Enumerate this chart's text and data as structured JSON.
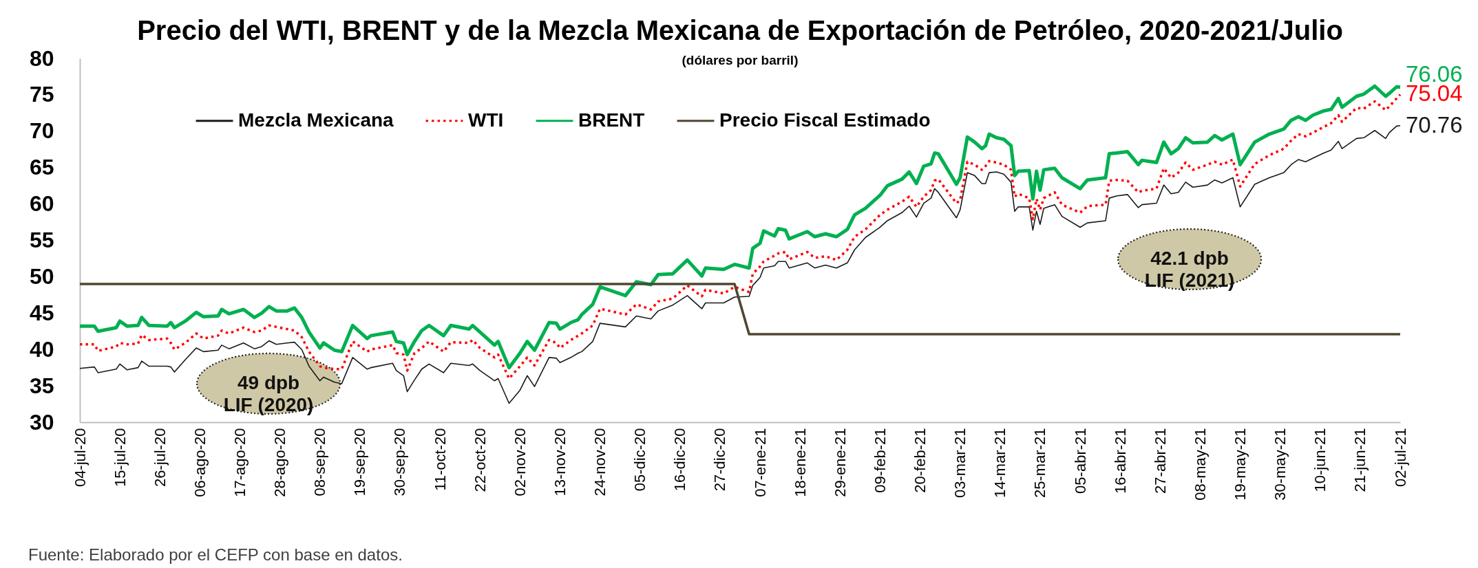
{
  "chart_data": {
    "type": "line",
    "title": "Precio del WTI, BRENT y de la Mezcla Mexicana de Exportación de Petróleo, 2020-2021/Julio",
    "subtitle": "(dólares por barril)",
    "legend": "top left",
    "xlim": [
      "2020-07-04",
      "2021-07-02"
    ],
    "xticks": [
      {
        "value": "2020-07-04",
        "label": "04-jul-20"
      },
      {
        "value": "2020-07-15",
        "label": "15-jul-20"
      },
      {
        "value": "2020-07-26",
        "label": "26-jul-20"
      },
      {
        "value": "2020-08-06",
        "label": "06-ago-20"
      },
      {
        "value": "2020-08-17",
        "label": "17-ago-20"
      },
      {
        "value": "2020-08-28",
        "label": "28-ago-20"
      },
      {
        "value": "2020-09-08",
        "label": "08-sep-20"
      },
      {
        "value": "2020-09-19",
        "label": "19-sep-20"
      },
      {
        "value": "2020-09-30",
        "label": "30-sep-20"
      },
      {
        "value": "2020-10-11",
        "label": "11-oct-20"
      },
      {
        "value": "2020-10-22",
        "label": "22-oct-20"
      },
      {
        "value": "2020-11-02",
        "label": "02-nov-20"
      },
      {
        "value": "2020-11-13",
        "label": "13-nov-20"
      },
      {
        "value": "2020-11-24",
        "label": "24-nov-20"
      },
      {
        "value": "2020-12-05",
        "label": "05-dic-20"
      },
      {
        "value": "2020-12-16",
        "label": "16-dic-20"
      },
      {
        "value": "2020-12-27",
        "label": "27-dic-20"
      },
      {
        "value": "2021-01-07",
        "label": "07-ene-21"
      },
      {
        "value": "2021-01-18",
        "label": "18-ene-21"
      },
      {
        "value": "2021-01-29",
        "label": "29-ene-21"
      },
      {
        "value": "2021-02-09",
        "label": "09-feb-21"
      },
      {
        "value": "2021-02-20",
        "label": "20-feb-21"
      },
      {
        "value": "2021-03-03",
        "label": "03-mar-21"
      },
      {
        "value": "2021-03-14",
        "label": "14-mar-21"
      },
      {
        "value": "2021-03-25",
        "label": "25-mar-21"
      },
      {
        "value": "2021-04-05",
        "label": "05-abr-21"
      },
      {
        "value": "2021-04-16",
        "label": "16-abr-21"
      },
      {
        "value": "2021-04-27",
        "label": "27-abr-21"
      },
      {
        "value": "2021-05-08",
        "label": "08-may-21"
      },
      {
        "value": "2021-05-19",
        "label": "19-may-21"
      },
      {
        "value": "2021-05-30",
        "label": "30-may-21"
      },
      {
        "value": "2021-06-10",
        "label": "10-jun-21"
      },
      {
        "value": "2021-06-21",
        "label": "21-jun-21"
      },
      {
        "value": "2021-07-02",
        "label": "02-jul-21"
      }
    ],
    "ylim": [
      30,
      80
    ],
    "yticks": [
      30,
      35,
      40,
      45,
      50,
      55,
      60,
      65,
      70,
      75,
      80
    ],
    "x": [
      "2020-07-04",
      "2020-07-08",
      "2020-07-09",
      "2020-07-14",
      "2020-07-15",
      "2020-07-17",
      "2020-07-20",
      "2020-07-21",
      "2020-07-23",
      "2020-07-28",
      "2020-07-29",
      "2020-07-30",
      "2020-08-02",
      "2020-08-05",
      "2020-08-07",
      "2020-08-11",
      "2020-08-12",
      "2020-08-14",
      "2020-08-18",
      "2020-08-21",
      "2020-08-23",
      "2020-08-25",
      "2020-08-27",
      "2020-08-30",
      "2020-09-01",
      "2020-09-03",
      "2020-09-05",
      "2020-09-08",
      "2020-09-09",
      "2020-09-12",
      "2020-09-14",
      "2020-09-17",
      "2020-09-21",
      "2020-09-22",
      "2020-09-28",
      "2020-09-29",
      "2020-10-01",
      "2020-10-02",
      "2020-10-04",
      "2020-10-06",
      "2020-10-08",
      "2020-10-12",
      "2020-10-14",
      "2020-10-19",
      "2020-10-20",
      "2020-10-22",
      "2020-10-26",
      "2020-10-27",
      "2020-10-30",
      "2020-11-02",
      "2020-11-04",
      "2020-11-06",
      "2020-11-10",
      "2020-11-12",
      "2020-11-13",
      "2020-11-16",
      "2020-11-18",
      "2020-11-19",
      "2020-11-22",
      "2020-11-24",
      "2020-12-01",
      "2020-12-04",
      "2020-12-08",
      "2020-12-10",
      "2020-12-14",
      "2020-12-18",
      "2020-12-22",
      "2020-12-23",
      "2020-12-28",
      "2020-12-31",
      "2021-01-04",
      "2021-01-05",
      "2021-01-07",
      "2021-01-08",
      "2021-01-11",
      "2021-01-12",
      "2021-01-14",
      "2021-01-15",
      "2021-01-20",
      "2021-01-22",
      "2021-01-25",
      "2021-01-28",
      "2021-01-31",
      "2021-02-02",
      "2021-02-05",
      "2021-02-09",
      "2021-02-11",
      "2021-02-15",
      "2021-02-17",
      "2021-02-19",
      "2021-02-21",
      "2021-02-23",
      "2021-02-24",
      "2021-02-25",
      "2021-03-02",
      "2021-03-03",
      "2021-03-05",
      "2021-03-07",
      "2021-03-09",
      "2021-03-10",
      "2021-03-11",
      "2021-03-13",
      "2021-03-15",
      "2021-03-17",
      "2021-03-18",
      "2021-03-19",
      "2021-03-22",
      "2021-03-23",
      "2021-03-24",
      "2021-03-25",
      "2021-03-26",
      "2021-03-29",
      "2021-03-31",
      "2021-04-05",
      "2021-04-07",
      "2021-04-12",
      "2021-04-13",
      "2021-04-15",
      "2021-04-18",
      "2021-04-21",
      "2021-04-22",
      "2021-04-26",
      "2021-04-28",
      "2021-04-30",
      "2021-05-02",
      "2021-05-04",
      "2021-05-06",
      "2021-05-10",
      "2021-05-12",
      "2021-05-14",
      "2021-05-17",
      "2021-05-19",
      "2021-05-23",
      "2021-05-27",
      "2021-05-31",
      "2021-06-02",
      "2021-06-04",
      "2021-06-06",
      "2021-06-08",
      "2021-06-11",
      "2021-06-13",
      "2021-06-15",
      "2021-06-16",
      "2021-06-20",
      "2021-06-22",
      "2021-06-25",
      "2021-06-28",
      "2021-06-29",
      "2021-07-01",
      "2021-07-02"
    ],
    "series": [
      {
        "name": "Mezcla Mexicana",
        "color": "#1a1a1a",
        "values": [
          37.4,
          37.6,
          36.8,
          37.3,
          38.0,
          37.2,
          37.5,
          38.4,
          37.7,
          37.7,
          37.6,
          36.9,
          38.6,
          40.2,
          39.7,
          39.9,
          40.6,
          40.1,
          40.9,
          40.1,
          40.4,
          41.2,
          40.7,
          40.9,
          41.0,
          40.0,
          37.7,
          35.7,
          36.2,
          35.5,
          35.3,
          38.9,
          37.3,
          37.5,
          38.1,
          37.1,
          36.4,
          34.2,
          35.8,
          37.3,
          38.0,
          36.8,
          38.1,
          37.8,
          38.0,
          37.1,
          35.7,
          36.0,
          32.6,
          34.4,
          36.4,
          34.9,
          38.9,
          38.8,
          38.2,
          38.9,
          39.5,
          39.7,
          41.1,
          43.6,
          43.1,
          44.6,
          44.2,
          45.3,
          46.1,
          47.4,
          45.6,
          46.4,
          46.4,
          47.2,
          47.3,
          48.8,
          49.9,
          51.2,
          51.5,
          52.1,
          52.1,
          51.2,
          51.9,
          51.2,
          51.6,
          51.2,
          51.9,
          53.7,
          55.4,
          56.8,
          57.7,
          58.8,
          59.7,
          58.2,
          60.1,
          60.8,
          62.1,
          61.6,
          58.1,
          59.2,
          64.3,
          63.9,
          62.8,
          62.8,
          64.3,
          64.4,
          64.1,
          63.0,
          59.0,
          59.6,
          59.6,
          56.4,
          59.0,
          57.2,
          59.4,
          59.9,
          58.3,
          56.8,
          57.4,
          57.7,
          60.8,
          61.1,
          61.3,
          59.5,
          59.9,
          60.1,
          62.6,
          61.4,
          61.6,
          63.0,
          62.3,
          62.6,
          63.3,
          62.9,
          63.6,
          59.6,
          62.7,
          63.6,
          64.3,
          65.4,
          66.1,
          65.8,
          66.3,
          67.0,
          67.4,
          68.6,
          67.6,
          69.0,
          69.1,
          70.1,
          69.0,
          69.8,
          70.7,
          70.76
        ],
        "value_labels": [
          null,
          null,
          null,
          null,
          null,
          null,
          null,
          null,
          null,
          null,
          null,
          null,
          null,
          null,
          null,
          null,
          null,
          null,
          null,
          null,
          null,
          null,
          null,
          null,
          null,
          null,
          null,
          null,
          null,
          null,
          null,
          null,
          null,
          null,
          null,
          null,
          null,
          null,
          null,
          null,
          null,
          null,
          null,
          null,
          null,
          null,
          null,
          null,
          null,
          null,
          null,
          null,
          null,
          null,
          null,
          null,
          null,
          null,
          null,
          null,
          null,
          null,
          null,
          null,
          null,
          null,
          null,
          null,
          null,
          null,
          null,
          null,
          null,
          null,
          null,
          null,
          null,
          null,
          null,
          null,
          null,
          null,
          null,
          null,
          null,
          null,
          null,
          null,
          null,
          null,
          null,
          null,
          null,
          null,
          null,
          null,
          null,
          null,
          null,
          null,
          null,
          null,
          null,
          null,
          null,
          null,
          null,
          null,
          null,
          null,
          null,
          null,
          null,
          null,
          null,
          null,
          null,
          null,
          null,
          null,
          null,
          null,
          null,
          null,
          null,
          null,
          null,
          null,
          null,
          null,
          null,
          null,
          null,
          null,
          null,
          null,
          null,
          null,
          null,
          null,
          null,
          null,
          null,
          null,
          null,
          null,
          null,
          null,
          null,
          "70.76"
        ]
      },
      {
        "name": "WTI",
        "color": "#ff0000",
        "line_style": "dotted",
        "values": [
          40.7,
          40.7,
          39.8,
          40.4,
          40.9,
          40.7,
          40.8,
          42.0,
          41.3,
          41.5,
          40.9,
          40.0,
          40.9,
          42.2,
          41.5,
          41.9,
          42.6,
          42.2,
          43.0,
          42.4,
          42.6,
          43.3,
          43.1,
          42.8,
          42.6,
          41.7,
          39.7,
          37.7,
          37.5,
          37.3,
          37.3,
          41.1,
          39.7,
          40.0,
          40.6,
          39.5,
          39.3,
          37.1,
          39.5,
          40.2,
          41.1,
          39.7,
          41.0,
          40.9,
          41.3,
          40.2,
          38.9,
          39.3,
          36.0,
          37.7,
          38.9,
          37.8,
          41.3,
          40.9,
          40.2,
          41.3,
          41.9,
          42.2,
          43.3,
          45.6,
          44.8,
          46.2,
          45.5,
          46.6,
          47.0,
          48.8,
          47.3,
          48.2,
          47.7,
          48.6,
          47.9,
          50.4,
          51.4,
          52.1,
          52.9,
          53.2,
          53.4,
          52.4,
          53.4,
          52.6,
          52.8,
          52.3,
          53.7,
          55.5,
          56.5,
          58.5,
          59.2,
          60.3,
          61.0,
          59.6,
          61.0,
          61.9,
          63.2,
          63.4,
          60.1,
          60.5,
          65.8,
          65.4,
          64.7,
          65.2,
          65.9,
          65.7,
          65.4,
          64.7,
          61.0,
          61.4,
          60.8,
          57.9,
          60.7,
          59.2,
          60.8,
          61.6,
          59.9,
          58.8,
          59.7,
          59.9,
          63.2,
          63.3,
          63.2,
          61.6,
          61.8,
          62.1,
          64.9,
          63.6,
          64.3,
          65.7,
          64.7,
          65.4,
          65.8,
          65.4,
          66.1,
          62.4,
          65.5,
          66.7,
          67.6,
          68.7,
          69.6,
          69.3,
          69.8,
          70.6,
          71.1,
          72.2,
          71.3,
          73.2,
          73.1,
          74.1,
          72.9,
          73.4,
          74.5,
          75.04
        ],
        "value_labels": [
          null,
          null,
          null,
          null,
          null,
          null,
          null,
          null,
          null,
          null,
          null,
          null,
          null,
          null,
          null,
          null,
          null,
          null,
          null,
          null,
          null,
          null,
          null,
          null,
          null,
          null,
          null,
          null,
          null,
          null,
          null,
          null,
          null,
          null,
          null,
          null,
          null,
          null,
          null,
          null,
          null,
          null,
          null,
          null,
          null,
          null,
          null,
          null,
          null,
          null,
          null,
          null,
          null,
          null,
          null,
          null,
          null,
          null,
          null,
          null,
          null,
          null,
          null,
          null,
          null,
          null,
          null,
          null,
          null,
          null,
          null,
          null,
          null,
          null,
          null,
          null,
          null,
          null,
          null,
          null,
          null,
          null,
          null,
          null,
          null,
          null,
          null,
          null,
          null,
          null,
          null,
          null,
          null,
          null,
          null,
          null,
          null,
          null,
          null,
          null,
          null,
          null,
          null,
          null,
          null,
          null,
          null,
          null,
          null,
          null,
          null,
          null,
          null,
          null,
          null,
          null,
          null,
          null,
          null,
          null,
          null,
          null,
          null,
          null,
          null,
          null,
          null,
          null,
          null,
          null,
          null,
          null,
          null,
          null,
          null,
          null,
          null,
          null,
          null,
          null,
          null,
          null,
          null,
          null,
          null,
          null,
          null,
          null,
          null,
          "75.04"
        ]
      },
      {
        "name": "BRENT",
        "color": "#00b050",
        "values": [
          43.2,
          43.2,
          42.5,
          43.0,
          43.9,
          43.2,
          43.3,
          44.4,
          43.3,
          43.2,
          43.7,
          43.0,
          43.9,
          45.1,
          44.5,
          44.6,
          45.5,
          44.9,
          45.5,
          44.4,
          45.0,
          45.9,
          45.3,
          45.3,
          45.7,
          44.4,
          42.4,
          40.2,
          40.9,
          39.9,
          39.7,
          43.3,
          41.5,
          41.9,
          42.4,
          41.1,
          40.9,
          39.3,
          41.1,
          42.6,
          43.3,
          41.9,
          43.3,
          42.8,
          43.3,
          42.4,
          40.6,
          41.1,
          37.5,
          39.5,
          41.1,
          39.9,
          43.7,
          43.6,
          42.8,
          43.7,
          44.1,
          44.8,
          46.2,
          48.6,
          47.4,
          49.3,
          48.9,
          50.3,
          50.4,
          52.3,
          50.1,
          51.2,
          51.0,
          51.7,
          51.2,
          53.9,
          54.6,
          56.3,
          55.6,
          56.6,
          56.4,
          55.2,
          56.2,
          55.5,
          55.9,
          55.5,
          56.5,
          58.5,
          59.4,
          61.2,
          62.5,
          63.4,
          64.4,
          62.8,
          65.2,
          65.5,
          67.0,
          66.9,
          62.7,
          63.6,
          69.2,
          68.5,
          67.6,
          68.0,
          69.6,
          69.1,
          68.9,
          68.0,
          63.9,
          64.5,
          64.6,
          60.7,
          64.5,
          61.9,
          64.7,
          64.9,
          63.6,
          62.1,
          63.3,
          63.6,
          66.9,
          67.0,
          67.2,
          65.4,
          66.0,
          65.7,
          68.5,
          66.9,
          67.6,
          69.1,
          68.4,
          68.5,
          69.4,
          68.8,
          69.6,
          65.4,
          68.5,
          69.6,
          70.3,
          71.5,
          72.0,
          71.5,
          72.2,
          72.8,
          73.0,
          74.5,
          73.3,
          74.8,
          75.1,
          76.2,
          74.8,
          75.2,
          76.1,
          76.06
        ],
        "value_labels": [
          null,
          null,
          null,
          null,
          null,
          null,
          null,
          null,
          null,
          null,
          null,
          null,
          null,
          null,
          null,
          null,
          null,
          null,
          null,
          null,
          null,
          null,
          null,
          null,
          null,
          null,
          null,
          null,
          null,
          null,
          null,
          null,
          null,
          null,
          null,
          null,
          null,
          null,
          null,
          null,
          null,
          null,
          null,
          null,
          null,
          null,
          null,
          null,
          null,
          null,
          null,
          null,
          null,
          null,
          null,
          null,
          null,
          null,
          null,
          null,
          null,
          null,
          null,
          null,
          null,
          null,
          null,
          null,
          null,
          null,
          null,
          null,
          null,
          null,
          null,
          null,
          null,
          null,
          null,
          null,
          null,
          null,
          null,
          null,
          null,
          null,
          null,
          null,
          null,
          null,
          null,
          null,
          null,
          null,
          null,
          null,
          null,
          null,
          null,
          null,
          null,
          null,
          null,
          null,
          null,
          null,
          null,
          null,
          null,
          null,
          null,
          null,
          null,
          null,
          null,
          null,
          null,
          null,
          null,
          null,
          null,
          null,
          null,
          null,
          null,
          null,
          null,
          null,
          null,
          null,
          null,
          null,
          null,
          null,
          null,
          null,
          null,
          null,
          null,
          null,
          null,
          null,
          null,
          null,
          null,
          null,
          null,
          null,
          null,
          "76.06"
        ]
      },
      {
        "name": "Precio Fiscal Estimado",
        "color": "#4f4631",
        "x": [
          "2020-07-04",
          "2020-12-31",
          "2021-01-04",
          "2021-07-02"
        ],
        "values": [
          49,
          49,
          42.1,
          42.1
        ]
      }
    ],
    "annotations": [
      "49 dpb\nLIF (2020)",
      "42.1 dpb\nLIF (2021)",
      "Fuente: Elaborado por el CEFP con base en datos."
    ]
  }
}
